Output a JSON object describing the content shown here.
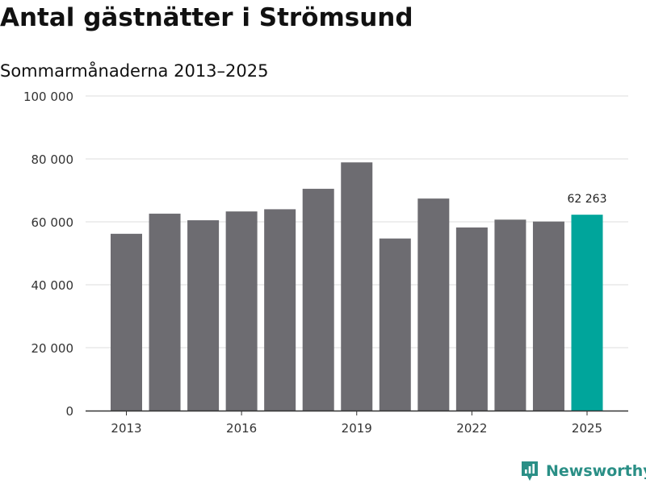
{
  "header": {
    "title": "Antal gästnätter i Strömsund",
    "subtitle": "Sommarmånaderna 2013–2025"
  },
  "footer": {
    "brand_name": "Newsworthy",
    "brand_icon": "newsworthy-logo-icon"
  },
  "colors": {
    "bar": "#6d6c71",
    "highlight": "#00a59b",
    "grid": "#dddddd",
    "axis": "#333333",
    "brand": "#2a8f86"
  },
  "chart_data": {
    "type": "bar",
    "title": "Antal gästnätter i Strömsund",
    "subtitle": "Sommarmånaderna 2013–2025",
    "xlabel": "",
    "ylabel": "",
    "categories": [
      "2013",
      "2014",
      "2015",
      "2016",
      "2017",
      "2018",
      "2019",
      "2020",
      "2021",
      "2022",
      "2023",
      "2024",
      "2025"
    ],
    "values": [
      56200,
      62600,
      60500,
      63300,
      64000,
      70500,
      78900,
      54700,
      67400,
      58200,
      60700,
      60100,
      62263
    ],
    "highlight_index": 12,
    "annotation": {
      "index": 12,
      "text": "62 263"
    },
    "x_tick_labels": [
      "2013",
      "2016",
      "2019",
      "2022",
      "2025"
    ],
    "y_tick_labels": [
      "0",
      "20 000",
      "40 000",
      "60 000",
      "80 000",
      "100 000"
    ],
    "y_ticks": [
      0,
      20000,
      40000,
      60000,
      80000,
      100000
    ],
    "ylim": [
      0,
      100000
    ],
    "grid": true,
    "legend": "none"
  }
}
